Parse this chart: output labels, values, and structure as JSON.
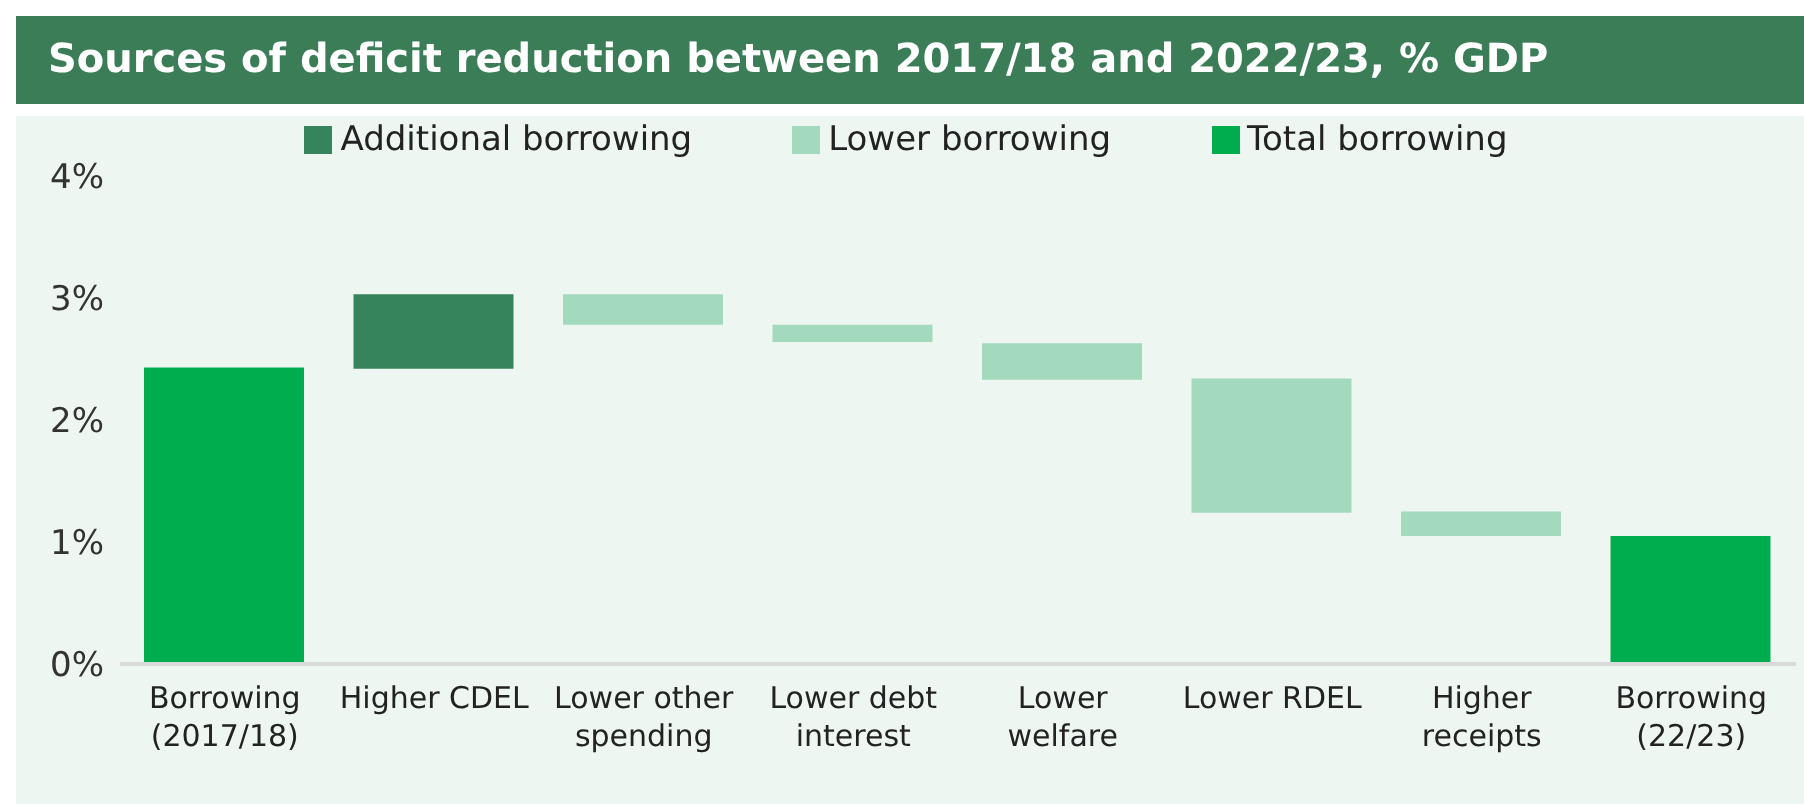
{
  "chart_data": {
    "type": "bar",
    "title": "Sources of deficit reduction between 2017/18 and 2022/23, % GDP",
    "categories": [
      "Borrowing (2017/18)",
      "Higher CDEL",
      "Lower other spending",
      "Lower debt interest",
      "Lower welfare",
      "Lower RDEL",
      "Higher receipts",
      "Borrowing (22/23)"
    ],
    "series": [
      {
        "name": "Additional borrowing",
        "color": "#36845c",
        "values": [
          null,
          0.61,
          null,
          null,
          null,
          null,
          null,
          null
        ],
        "base": [
          null,
          2.42,
          null,
          null,
          null,
          null,
          null,
          null
        ]
      },
      {
        "name": "Lower borrowing",
        "color": "#a3dabe",
        "values": [
          null,
          null,
          0.25,
          0.14,
          0.3,
          1.1,
          0.2,
          null
        ],
        "base": [
          null,
          null,
          2.78,
          2.64,
          2.33,
          1.24,
          1.05,
          null
        ]
      },
      {
        "name": "Total borrowing",
        "color": "#00ad4e",
        "values": [
          2.43,
          null,
          null,
          null,
          null,
          null,
          null,
          1.05
        ]
      }
    ],
    "ylim": [
      0,
      4
    ],
    "yticks": [
      {
        "value": 0,
        "label": "0%"
      },
      {
        "value": 1,
        "label": "1%"
      },
      {
        "value": 2,
        "label": "2%"
      },
      {
        "value": 3,
        "label": "3%"
      },
      {
        "value": 4,
        "label": "4%"
      }
    ],
    "grid": false,
    "legend": "top"
  }
}
